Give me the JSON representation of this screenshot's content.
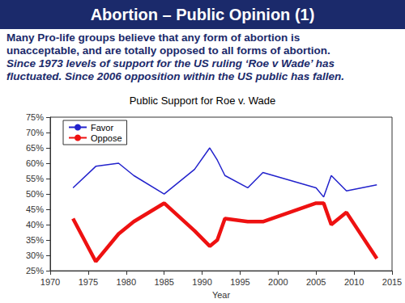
{
  "header": {
    "title": "Abortion – Public Opinion (1)"
  },
  "paragraphs": [
    {
      "text": "Many Pro-life groups believe that any form of abortion is unacceptable, and are totally opposed to all forms of abortion.",
      "italic": false
    },
    {
      "text": "Since 1973 levels of support for the US ruling ‘Roe v Wade’ has fluctuated. Since 2006 opposition within the US public has fallen.",
      "italic": true
    }
  ],
  "chart_data": {
    "type": "line",
    "title": "Public Support for Roe v. Wade",
    "x_label": "Year",
    "x": [
      1973,
      1976,
      1979,
      1981,
      1985,
      1989,
      1991,
      1992,
      1993,
      1996,
      1998,
      2005,
      2006,
      2007,
      2009,
      2013
    ],
    "series": [
      {
        "name": "Favor",
        "color": "#2222cc",
        "line_style": "solid",
        "marker": "none",
        "values": [
          52,
          59,
          60,
          56,
          50,
          58,
          65,
          61,
          56,
          52,
          57,
          52,
          49,
          56,
          51,
          53
        ]
      },
      {
        "name": "Oppose",
        "color": "#ee1111",
        "line_style": "solid",
        "marker": "none",
        "values": [
          42,
          28,
          37,
          41,
          47,
          38,
          33,
          35,
          42,
          41,
          41,
          47,
          47,
          40,
          44,
          29
        ]
      }
    ],
    "xlim": [
      1970,
      2015
    ],
    "xticks": [
      1970,
      1975,
      1980,
      1985,
      1990,
      1995,
      2000,
      2005,
      2010,
      2015
    ],
    "ylim": [
      25,
      75
    ],
    "yticks": [
      {
        "value": 25,
        "label": "25%"
      },
      {
        "value": 30,
        "label": "30%"
      },
      {
        "value": 35,
        "label": "35%"
      },
      {
        "value": 40,
        "label": "40%"
      },
      {
        "value": 45,
        "label": "45%"
      },
      {
        "value": 50,
        "label": "50%"
      },
      {
        "value": 55,
        "label": "55%"
      },
      {
        "value": 60,
        "label": "60%"
      },
      {
        "value": 65,
        "label": "65%"
      },
      {
        "value": 70,
        "label": "70%"
      },
      {
        "value": 75,
        "label": "75%"
      }
    ],
    "legend": "upper left",
    "grid": false
  }
}
